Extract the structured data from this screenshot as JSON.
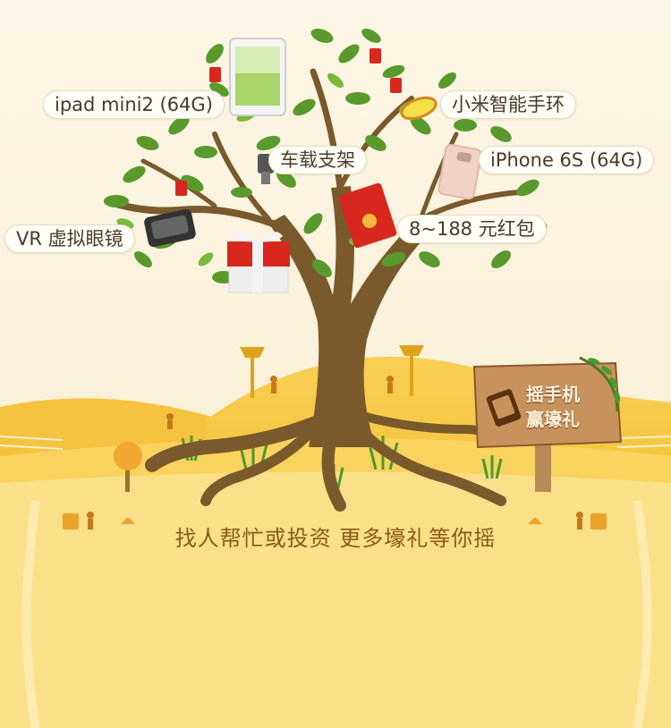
{
  "prizes": {
    "ipad": "ipad mini2 (64G)",
    "mi_band": "小米智能手环",
    "car_mount": "车载支架",
    "iphone": "iPhone 6S (64G)",
    "vr": "VR 虚拟眼镜",
    "red_packet": "8~188 元红包"
  },
  "sign": {
    "line1": "摇手机",
    "line2": "赢壕礼"
  },
  "slogan": "找人帮忙或投资 更多壕礼等你摇",
  "icons": [
    "tablet-icon",
    "fitness-band-icon",
    "car-mount-icon",
    "phone-icon",
    "vr-headset-icon",
    "red-envelope-icon",
    "gift-box-icon",
    "shake-hand-icon"
  ],
  "colors": {
    "sky": "#fbf3dc",
    "hill": "#f7c845",
    "ground": "#fbe08a",
    "trunk": "#7a5a2c",
    "leaf": "#5a9a2c",
    "red": "#d8281e",
    "text": "#8a5a1a"
  }
}
